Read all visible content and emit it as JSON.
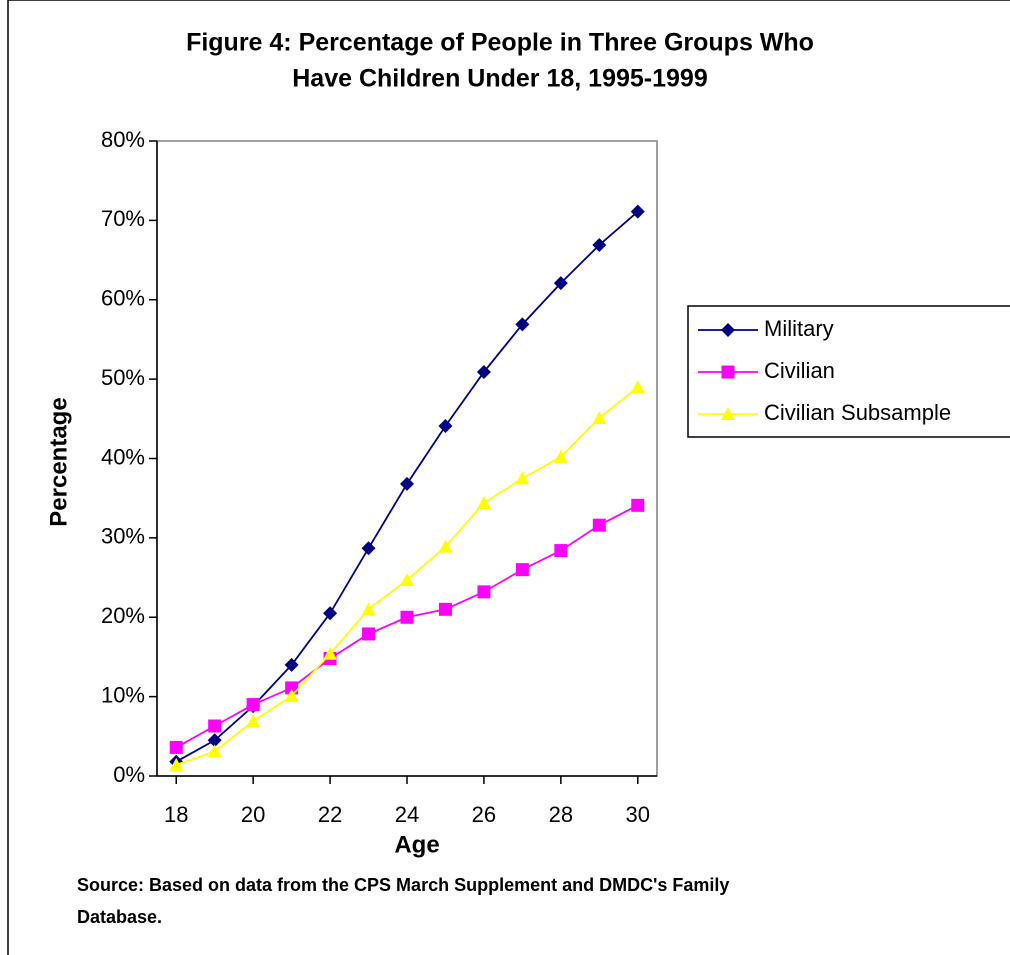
{
  "chart_data": {
    "type": "line",
    "title": "Figure 4: Percentage of People in Three Groups Who Have  Children Under 18, 1995-1999",
    "title_lines": [
      "Figure 4: Percentage of People in Three Groups Who",
      "Have  Children Under 18, 1995-1999"
    ],
    "x_label": "Age",
    "y_label": "Percentage",
    "source_lines": [
      "Source: Based on data from the CPS March Supplement and DMDC's Family",
      "Database."
    ],
    "x": [
      18,
      19,
      20,
      21,
      22,
      23,
      24,
      25,
      26,
      27,
      28,
      29,
      30
    ],
    "xlim": [
      17.5,
      30.5
    ],
    "xticks": [
      18,
      20,
      22,
      24,
      26,
      28,
      30
    ],
    "ylim": [
      0,
      80
    ],
    "yticks": [
      {
        "value": 0,
        "label": "0%"
      },
      {
        "value": 10,
        "label": "10%"
      },
      {
        "value": 20,
        "label": "20%"
      },
      {
        "value": 30,
        "label": "30%"
      },
      {
        "value": 40,
        "label": "40%"
      },
      {
        "value": 50,
        "label": "50%"
      },
      {
        "value": 60,
        "label": "60%"
      },
      {
        "value": 70,
        "label": "70%"
      },
      {
        "value": 80,
        "label": "80%"
      }
    ],
    "grid": false,
    "series": [
      {
        "name": "Military",
        "color": "#000080",
        "marker": "diamond",
        "values": [
          1.8,
          4.5,
          8.8,
          14.0,
          20.5,
          28.7,
          36.8,
          44.1,
          50.9,
          56.9,
          62.1,
          66.9,
          71.1
        ]
      },
      {
        "name": "Civilian",
        "color": "#ff00ff",
        "marker": "square",
        "values": [
          3.6,
          6.3,
          9.0,
          11.1,
          14.8,
          17.9,
          20.0,
          21.0,
          23.2,
          26.0,
          28.4,
          31.6,
          34.1
        ]
      },
      {
        "name": "Civilian Subsample",
        "color": "#ffff00",
        "marker": "triangle",
        "values": [
          1.4,
          3.1,
          6.9,
          10.1,
          15.4,
          21.0,
          24.7,
          28.9,
          34.4,
          37.5,
          40.2,
          45.1,
          49.0
        ]
      }
    ]
  }
}
